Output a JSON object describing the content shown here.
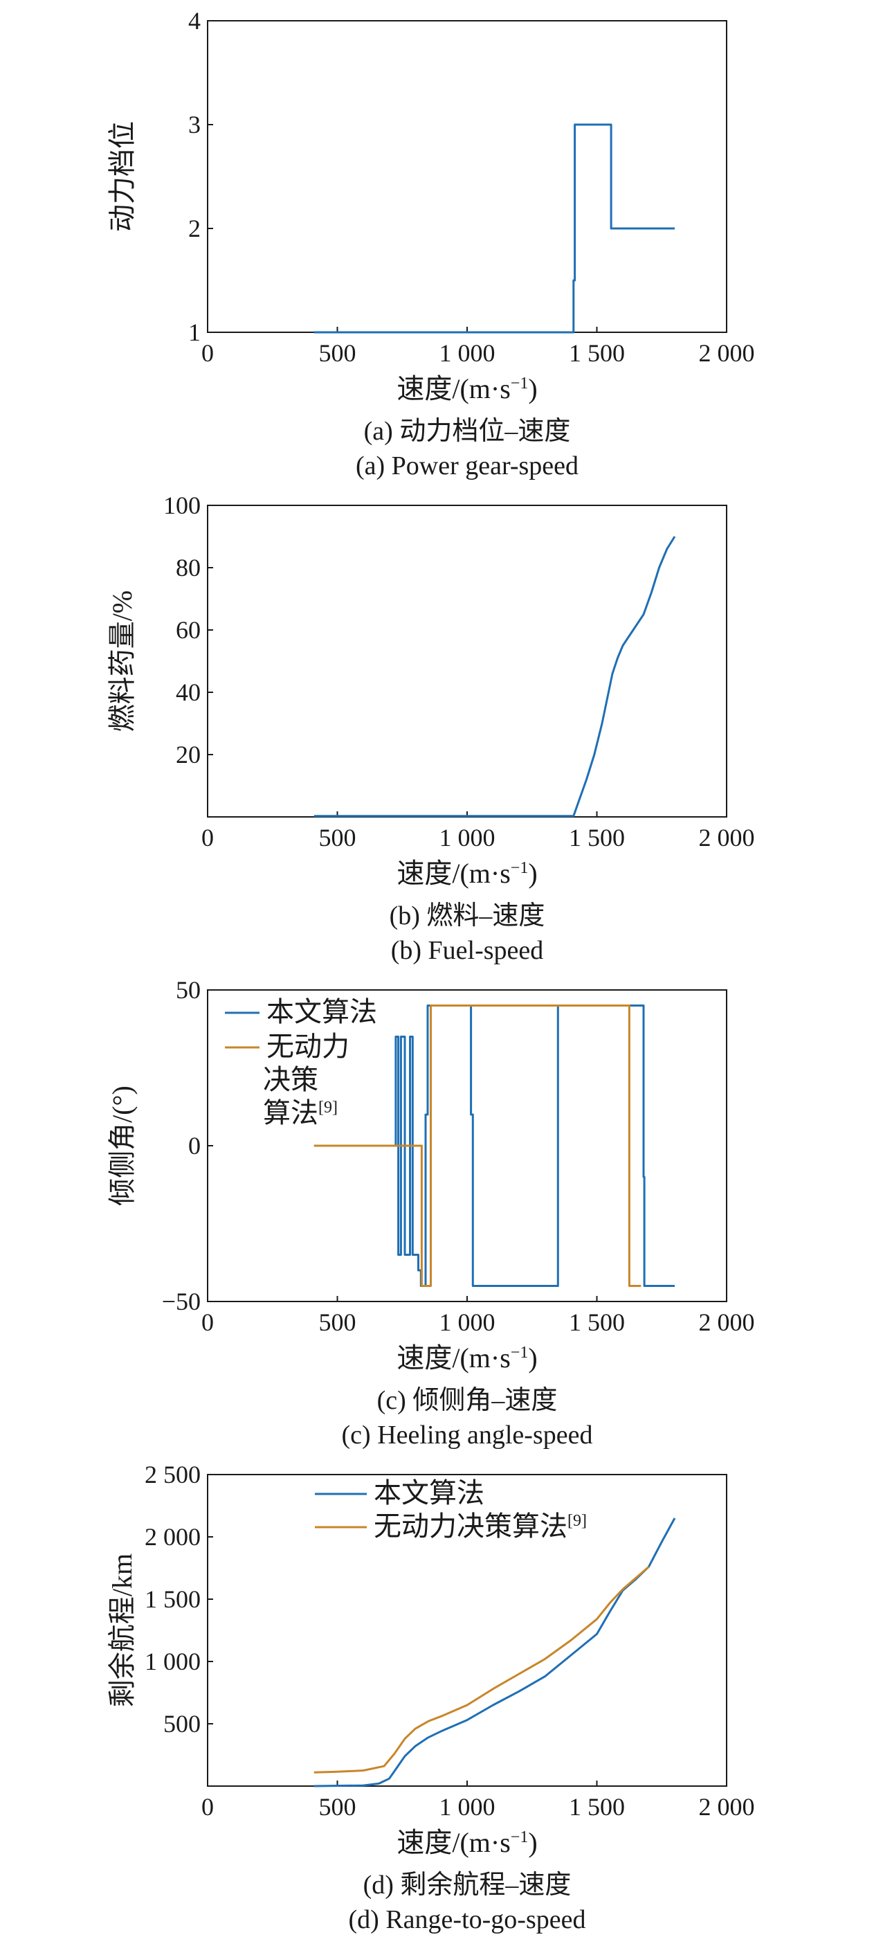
{
  "colors": {
    "series_primary": "#1f6fb4",
    "series_secondary": "#c8862a",
    "axis": "#1a1a1a"
  },
  "chart_data": [
    {
      "id": "a",
      "type": "line",
      "title": "",
      "xlabel": "速度/(m·s⁻¹)",
      "ylabel": "动力档位",
      "caption_cn": "(a) 动力档位–速度",
      "caption_en": "(a) Power gear-speed",
      "xlim": [
        0,
        2000
      ],
      "ylim": [
        1,
        4
      ],
      "xticks": [
        {
          "v": 0,
          "label": "0"
        },
        {
          "v": 500,
          "label": "500"
        },
        {
          "v": 1000,
          "label": "1 000"
        },
        {
          "v": 1500,
          "label": "1 500"
        },
        {
          "v": 2000,
          "label": "2 000"
        }
      ],
      "yticks": [
        {
          "v": 1,
          "label": "1"
        },
        {
          "v": 2,
          "label": "2"
        },
        {
          "v": 3,
          "label": "3"
        },
        {
          "v": 4,
          "label": "4"
        }
      ],
      "grid": false,
      "legend": null,
      "series": [
        {
          "color": "#1f6fb4",
          "x": [
            410,
            1410,
            1410,
            1415,
            1415,
            1555,
            1555,
            1800
          ],
          "y": [
            1,
            1,
            1.5,
            1.5,
            3,
            3,
            2,
            2
          ]
        }
      ]
    },
    {
      "id": "b",
      "type": "line",
      "title": "",
      "xlabel": "速度/(m·s⁻¹)",
      "ylabel": "燃料药量/%",
      "caption_cn": "(b) 燃料–速度",
      "caption_en": "(b) Fuel-speed",
      "xlim": [
        0,
        2000
      ],
      "ylim": [
        0,
        100
      ],
      "xticks": [
        {
          "v": 0,
          "label": "0"
        },
        {
          "v": 500,
          "label": "500"
        },
        {
          "v": 1000,
          "label": "1 000"
        },
        {
          "v": 1500,
          "label": "1 500"
        },
        {
          "v": 2000,
          "label": "2 000"
        }
      ],
      "yticks": [
        {
          "v": 20,
          "label": "20"
        },
        {
          "v": 40,
          "label": "40"
        },
        {
          "v": 60,
          "label": "60"
        },
        {
          "v": 80,
          "label": "80"
        },
        {
          "v": 100,
          "label": "100"
        }
      ],
      "grid": false,
      "legend": null,
      "series": [
        {
          "color": "#1f6fb4",
          "x": [
            410,
            1410,
            1430,
            1460,
            1490,
            1520,
            1540,
            1560,
            1580,
            1600,
            1640,
            1680,
            1710,
            1740,
            1770,
            1800
          ],
          "y": [
            0.3,
            0.3,
            5,
            12,
            20,
            30,
            38,
            46,
            51,
            55,
            60,
            65,
            72,
            80,
            86,
            90
          ]
        }
      ]
    },
    {
      "id": "c",
      "type": "line",
      "title": "",
      "xlabel": "速度/(m·s⁻¹)",
      "ylabel": "倾侧角/(°)",
      "caption_cn": "(c) 倾侧角–速度",
      "caption_en": "(c) Heeling angle-speed",
      "xlim": [
        0,
        2000
      ],
      "ylim": [
        -50,
        50
      ],
      "xticks": [
        {
          "v": 0,
          "label": "0"
        },
        {
          "v": 500,
          "label": "500"
        },
        {
          "v": 1000,
          "label": "1 000"
        },
        {
          "v": 1500,
          "label": "1 500"
        },
        {
          "v": 2000,
          "label": "2 000"
        }
      ],
      "yticks": [
        {
          "v": -50,
          "label": "−50"
        },
        {
          "v": 0,
          "label": "0"
        },
        {
          "v": 50,
          "label": "50"
        }
      ],
      "grid": false,
      "legend": {
        "position": "top-left",
        "entries": [
          "本文算法",
          "无动力决策算法[9]"
        ]
      },
      "series": [
        {
          "name": "本文算法",
          "color": "#1f6fb4",
          "x": [
            410,
            725,
            725,
            735,
            735,
            745,
            745,
            760,
            760,
            780,
            780,
            790,
            790,
            812,
            812,
            822,
            822,
            840,
            840,
            848,
            848,
            1015,
            1015,
            1022,
            1022,
            1350,
            1350,
            1680,
            1680,
            1683,
            1683,
            1800
          ],
          "y": [
            0,
            0,
            35,
            35,
            -35,
            -35,
            35,
            35,
            -35,
            -35,
            35,
            35,
            -35,
            -35,
            -40,
            -40,
            -45,
            -45,
            10,
            10,
            45,
            45,
            10,
            10,
            -45,
            -45,
            45,
            45,
            -10,
            -10,
            -45,
            -45
          ]
        },
        {
          "name": "无动力决策算法[9]",
          "color": "#c8862a",
          "x": [
            410,
            825,
            825,
            860,
            860,
            1625,
            1625,
            1670
          ],
          "y": [
            0,
            0,
            -45,
            -45,
            45,
            45,
            -45,
            -45
          ]
        }
      ]
    },
    {
      "id": "d",
      "type": "line",
      "title": "",
      "xlabel": "速度/(m·s⁻¹)",
      "ylabel": "剩余航程/km",
      "caption_cn": "(d) 剩余航程–速度",
      "caption_en": "(d) Range-to-go-speed",
      "xlim": [
        0,
        2000
      ],
      "ylim": [
        0,
        2500
      ],
      "xticks": [
        {
          "v": 0,
          "label": "0"
        },
        {
          "v": 500,
          "label": "500"
        },
        {
          "v": 1000,
          "label": "1 000"
        },
        {
          "v": 1500,
          "label": "1 500"
        },
        {
          "v": 2000,
          "label": "2 000"
        }
      ],
      "yticks": [
        {
          "v": 500,
          "label": "500"
        },
        {
          "v": 1000,
          "label": "1 000"
        },
        {
          "v": 1500,
          "label": "1 500"
        },
        {
          "v": 2000,
          "label": "2 000"
        },
        {
          "v": 2500,
          "label": "2 500"
        }
      ],
      "grid": false,
      "legend": {
        "position": "top-center",
        "entries": [
          "本文算法",
          "无动力决策算法[9]"
        ]
      },
      "series": [
        {
          "name": "本文算法",
          "color": "#1f6fb4",
          "x": [
            410,
            600,
            660,
            700,
            730,
            760,
            800,
            850,
            900,
            1000,
            1100,
            1200,
            1300,
            1400,
            1500,
            1550,
            1600,
            1650,
            1700,
            1750,
            1800
          ],
          "y": [
            0,
            5,
            20,
            60,
            150,
            240,
            320,
            390,
            440,
            530,
            650,
            760,
            880,
            1050,
            1220,
            1400,
            1570,
            1660,
            1760,
            1960,
            2150
          ]
        },
        {
          "name": "无动力决策算法[9]",
          "color": "#c8862a",
          "x": [
            410,
            500,
            600,
            680,
            720,
            760,
            800,
            850,
            900,
            1000,
            1100,
            1200,
            1300,
            1400,
            1500,
            1550,
            1600,
            1650,
            1700
          ],
          "y": [
            110,
            115,
            125,
            160,
            260,
            380,
            460,
            520,
            560,
            650,
            780,
            900,
            1020,
            1170,
            1340,
            1470,
            1580,
            1670,
            1760
          ]
        }
      ]
    }
  ]
}
